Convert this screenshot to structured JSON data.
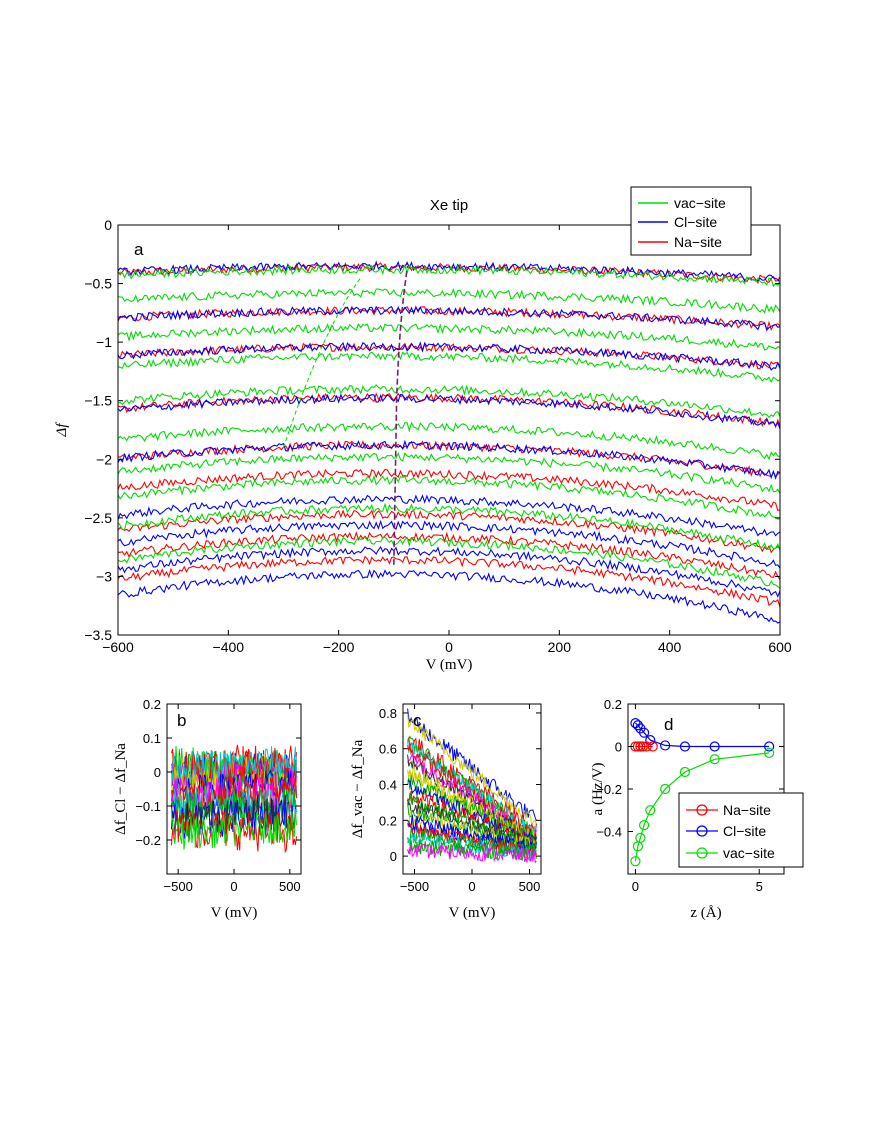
{
  "colors": {
    "vac": "#00dd00",
    "cl": "#0000ff",
    "na": "#ff0000",
    "extra": [
      "#00aa00",
      "#cccc00",
      "#ff00ff",
      "#00cccc",
      "#2f2f2f"
    ]
  },
  "chart_data": [
    {
      "id": "a",
      "type": "line",
      "panel_label": "a",
      "title": "Xe tip",
      "xlabel": "V (mV)",
      "ylabel": "Δf",
      "xlim": [
        -600,
        600
      ],
      "ylim": [
        -3.5,
        0
      ],
      "xticks": [
        "−600",
        "−400",
        "−200",
        "0",
        "200",
        "400",
        "600"
      ],
      "yticks": [
        "0",
        "−0.5",
        "−1",
        "−1.5",
        "−2",
        "−2.5",
        "−3",
        "−3.5"
      ],
      "legend": {
        "placement": "top-right",
        "entries": [
          "vac−site",
          "Cl−site",
          "Na−site"
        ]
      },
      "curve_model": "y = a + b·(x − x0)^2 (approximate; noisy traces)",
      "series": [
        {
          "name": "vac−site",
          "offsets": [
            -0.38,
            -0.58,
            -0.88,
            -1.12,
            -1.4,
            -1.72,
            -1.98,
            -2.18,
            -2.42,
            -2.7
          ],
          "curvature_per_1e6mV2": [
            0.4,
            0.5,
            0.6,
            0.7,
            0.8,
            0.9,
            1.0,
            1.1,
            1.2,
            1.3
          ]
        },
        {
          "name": "Cl−site",
          "offsets": [
            -0.35,
            -0.73,
            -1.04,
            -1.48,
            -1.88,
            -2.34,
            -2.56,
            -2.78,
            -2.98
          ],
          "curvature_per_1e6mV2": [
            0.4,
            0.5,
            0.6,
            0.8,
            0.9,
            1.1,
            1.2,
            1.3,
            1.4
          ]
        },
        {
          "name": "Na−site",
          "offsets": [
            -0.36,
            -0.73,
            -1.04,
            -1.47,
            -1.88,
            -2.12,
            -2.47,
            -2.66,
            -2.86
          ],
          "curvature_per_1e6mV2": [
            0.4,
            0.5,
            0.6,
            0.8,
            0.9,
            1.0,
            1.1,
            1.2,
            1.3
          ]
        }
      ]
    },
    {
      "id": "b",
      "type": "line",
      "panel_label": "b",
      "xlabel": "V (mV)",
      "ylabel": "Δf_Cl − Δf_Na",
      "xlim": [
        -600,
        600
      ],
      "ylim": [
        -0.3,
        0.2
      ],
      "xticks": [
        "−500",
        "0",
        "500"
      ],
      "yticks": [
        "0.2",
        "0.1",
        "0",
        "−0.1",
        "−0.2"
      ],
      "series_levels": [
        0.01,
        0.0,
        -0.01,
        0.02,
        -0.05,
        -0.07,
        -0.1,
        -0.13,
        -0.17
      ]
    },
    {
      "id": "c",
      "type": "line",
      "panel_label": "c",
      "xlabel": "V (mV)",
      "ylabel": "Δf_vac − Δf_Na",
      "xlim": [
        -600,
        600
      ],
      "ylim": [
        -0.1,
        0.85
      ],
      "xticks": [
        "−500",
        "0",
        "500"
      ],
      "yticks": [
        "0.8",
        "0.6",
        "0.4",
        "0.2",
        "0"
      ],
      "series_start_end": [
        [
          0.78,
          0.2
        ],
        [
          0.66,
          0.14
        ],
        [
          0.62,
          0.12
        ],
        [
          0.55,
          0.11
        ],
        [
          0.48,
          0.1
        ],
        [
          0.42,
          0.09
        ],
        [
          0.34,
          0.08
        ],
        [
          0.28,
          0.07
        ],
        [
          0.22,
          0.05
        ],
        [
          0.17,
          0.04
        ],
        [
          0.12,
          0.03
        ],
        [
          0.05,
          0.02
        ]
      ]
    },
    {
      "id": "d",
      "type": "line",
      "panel_label": "d",
      "xlabel": "z (Å)",
      "ylabel": "a (Hz/V)",
      "xlim": [
        -0.3,
        6
      ],
      "ylim": [
        -0.6,
        0.2
      ],
      "xticks": [
        "0",
        "5"
      ],
      "yticks": [
        "0.2",
        "0",
        "−0.2",
        "−0.4"
      ],
      "legend": {
        "placement": "bottom-right",
        "entries": [
          "Na−site",
          "Cl−site",
          "vac−site"
        ]
      },
      "series": [
        {
          "name": "Na−site",
          "x": [
            0,
            0.1,
            0.2,
            0.3,
            0.45,
            0.7
          ],
          "y": [
            0.0,
            0.0,
            0.0,
            0.0,
            0.0,
            0.0
          ]
        },
        {
          "name": "Cl−site",
          "x": [
            0,
            0.1,
            0.2,
            0.35,
            0.6,
            1.2,
            2.0,
            3.2,
            5.4
          ],
          "y": [
            0.11,
            0.1,
            0.085,
            0.065,
            0.03,
            0.005,
            0.0,
            0.0,
            0.0
          ]
        },
        {
          "name": "vac−site",
          "x": [
            0,
            0.1,
            0.2,
            0.35,
            0.6,
            1.2,
            2.0,
            3.2,
            5.4
          ],
          "y": [
            -0.54,
            -0.47,
            -0.43,
            -0.37,
            -0.3,
            -0.2,
            -0.12,
            -0.06,
            -0.03
          ]
        }
      ]
    }
  ]
}
